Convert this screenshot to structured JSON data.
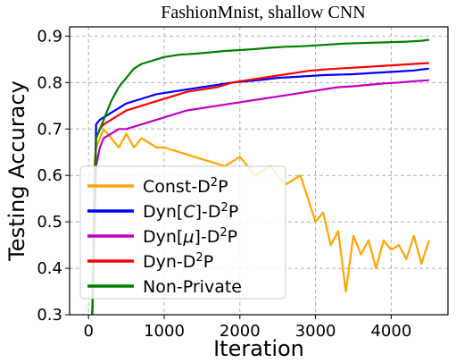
{
  "chart_data": {
    "type": "line",
    "title": "FashionMnist, shallow CNN",
    "xlabel": "Iteration",
    "ylabel": "Testing Accuracy",
    "xlim": [
      -250,
      4750
    ],
    "ylim": [
      0.3,
      0.92
    ],
    "xticks": [
      0,
      1000,
      2000,
      3000,
      4000
    ],
    "yticks": [
      0.3,
      0.4,
      0.5,
      0.6,
      0.7,
      0.8,
      0.9
    ],
    "grid": true,
    "legend_position": "lower-left",
    "series": [
      {
        "name_parts": [
          "Const-D",
          "2",
          "P"
        ],
        "color": "#FFA500",
        "x": [
          50,
          80,
          100,
          150,
          200,
          300,
          400,
          500,
          600,
          700,
          800,
          900,
          1000,
          1200,
          1400,
          1600,
          1800,
          2000,
          2200,
          2400,
          2600,
          2800,
          3000,
          3100,
          3200,
          3300,
          3400,
          3500,
          3600,
          3700,
          3800,
          3900,
          4000,
          4100,
          4200,
          4300,
          4400,
          4500
        ],
        "y": [
          0.3,
          0.63,
          0.66,
          0.68,
          0.7,
          0.68,
          0.66,
          0.69,
          0.66,
          0.68,
          0.67,
          0.66,
          0.66,
          0.65,
          0.64,
          0.63,
          0.62,
          0.64,
          0.6,
          0.62,
          0.58,
          0.6,
          0.5,
          0.52,
          0.45,
          0.48,
          0.35,
          0.47,
          0.43,
          0.46,
          0.4,
          0.46,
          0.44,
          0.45,
          0.42,
          0.47,
          0.41,
          0.46
        ]
      },
      {
        "name_parts": [
          "Dyn[",
          "C",
          "]-D",
          "2",
          "P"
        ],
        "color": "#0000FF",
        "x": [
          50,
          100,
          150,
          200,
          300,
          400,
          500,
          700,
          900,
          1100,
          1300,
          1500,
          1700,
          1900,
          2100,
          2300,
          2500,
          2700,
          2900,
          3100,
          3300,
          3500,
          3700,
          3900,
          4100,
          4300,
          4500
        ],
        "y": [
          0.3,
          0.71,
          0.72,
          0.725,
          0.735,
          0.745,
          0.755,
          0.765,
          0.775,
          0.78,
          0.785,
          0.79,
          0.795,
          0.8,
          0.803,
          0.806,
          0.81,
          0.812,
          0.814,
          0.816,
          0.817,
          0.818,
          0.82,
          0.822,
          0.824,
          0.826,
          0.83
        ]
      },
      {
        "name_parts": [
          "Dyn[",
          "μ",
          "]-D",
          "2",
          "P"
        ],
        "color": "#C000C0",
        "x": [
          50,
          100,
          150,
          200,
          300,
          400,
          500,
          700,
          900,
          1100,
          1300,
          1500,
          1700,
          1900,
          2100,
          2300,
          2500,
          2700,
          2900,
          3100,
          3300,
          3500,
          3700,
          3900,
          4100,
          4300,
          4500
        ],
        "y": [
          0.3,
          0.62,
          0.66,
          0.68,
          0.69,
          0.7,
          0.7,
          0.71,
          0.72,
          0.73,
          0.74,
          0.745,
          0.75,
          0.755,
          0.76,
          0.765,
          0.77,
          0.775,
          0.78,
          0.785,
          0.79,
          0.792,
          0.795,
          0.798,
          0.8,
          0.803,
          0.805
        ]
      },
      {
        "name_parts": [
          "Dyn-D",
          "2",
          "P"
        ],
        "color": "#FF0000",
        "x": [
          50,
          100,
          150,
          200,
          300,
          400,
          500,
          700,
          900,
          1100,
          1300,
          1500,
          1700,
          1900,
          2100,
          2300,
          2500,
          2700,
          2900,
          3100,
          3300,
          3500,
          3700,
          3900,
          4100,
          4300,
          4500
        ],
        "y": [
          0.3,
          0.68,
          0.7,
          0.71,
          0.72,
          0.73,
          0.74,
          0.75,
          0.76,
          0.77,
          0.78,
          0.785,
          0.79,
          0.8,
          0.805,
          0.81,
          0.815,
          0.82,
          0.825,
          0.828,
          0.83,
          0.832,
          0.834,
          0.836,
          0.838,
          0.84,
          0.842
        ]
      },
      {
        "name_parts": [
          "Non-Private"
        ],
        "color": "#008000",
        "x": [
          50,
          100,
          150,
          200,
          300,
          400,
          500,
          600,
          700,
          800,
          900,
          1000,
          1200,
          1400,
          1600,
          1800,
          2000,
          2200,
          2400,
          2600,
          2800,
          3000,
          3200,
          3400,
          3600,
          3800,
          4000,
          4200,
          4400,
          4500
        ],
        "y": [
          0.3,
          0.68,
          0.7,
          0.72,
          0.76,
          0.79,
          0.81,
          0.83,
          0.84,
          0.845,
          0.85,
          0.855,
          0.86,
          0.862,
          0.865,
          0.868,
          0.87,
          0.872,
          0.875,
          0.877,
          0.878,
          0.88,
          0.882,
          0.884,
          0.885,
          0.886,
          0.887,
          0.888,
          0.89,
          0.892
        ]
      }
    ]
  }
}
